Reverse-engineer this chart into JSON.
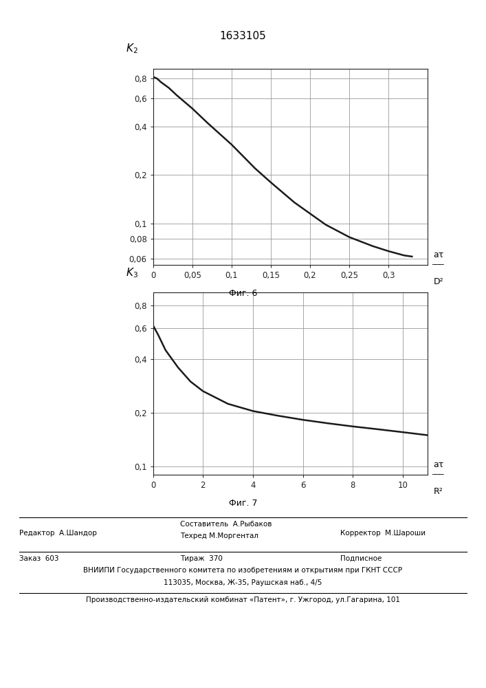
{
  "title": "1633105",
  "fig6_label": "Фиг. 6",
  "fig7_label": "Фиг. 7",
  "plot1": {
    "ylabel": "K₂",
    "xlabel_num": "aτ",
    "xlabel_den": "D²",
    "xtick_vals": [
      0,
      0.05,
      0.1,
      0.15,
      0.2,
      0.25,
      0.3
    ],
    "xtick_labels": [
      "0",
      "0,05",
      "0,1",
      "0,15",
      "0,2",
      "0,25",
      "0,3"
    ],
    "ytick_vals": [
      0.06,
      0.08,
      0.1,
      0.2,
      0.4,
      0.6,
      0.8
    ],
    "ytick_labels": [
      "0,06",
      "0,08",
      "0,1",
      "0,2",
      "0,4",
      "0,6",
      "0,8"
    ],
    "xmin": 0,
    "xmax": 0.35,
    "ymin": 0.055,
    "ymax": 0.92,
    "curve_x": [
      0,
      0.005,
      0.01,
      0.02,
      0.03,
      0.05,
      0.07,
      0.1,
      0.13,
      0.15,
      0.18,
      0.2,
      0.22,
      0.25,
      0.28,
      0.3,
      0.32,
      0.33
    ],
    "curve_y": [
      0.82,
      0.8,
      0.76,
      0.7,
      0.63,
      0.52,
      0.42,
      0.31,
      0.22,
      0.18,
      0.135,
      0.115,
      0.098,
      0.082,
      0.072,
      0.067,
      0.063,
      0.062
    ]
  },
  "plot2": {
    "ylabel": "K₃",
    "xlabel_num": "aτ",
    "xlabel_den": "R²",
    "xtick_vals": [
      0,
      2,
      4,
      6,
      8,
      10
    ],
    "xtick_labels": [
      "0",
      "2",
      "4",
      "6",
      "8",
      "10"
    ],
    "ytick_vals": [
      0.1,
      0.2,
      0.4,
      0.6,
      0.8
    ],
    "ytick_labels": [
      "0,1",
      "0,2",
      "0,4",
      "0,6",
      "0,8"
    ],
    "xmin": 0,
    "xmax": 11,
    "ymin": 0.09,
    "ymax": 0.95,
    "curve_x": [
      0,
      0.2,
      0.5,
      1.0,
      1.5,
      2.0,
      3.0,
      4.0,
      5.0,
      6.0,
      7.0,
      8.0,
      9.0,
      10.0,
      11.0
    ],
    "curve_y": [
      0.62,
      0.55,
      0.45,
      0.36,
      0.3,
      0.265,
      0.225,
      0.205,
      0.193,
      0.183,
      0.175,
      0.168,
      0.162,
      0.156,
      0.15
    ]
  },
  "footer": {
    "editor": "Редактор  А.Шандор",
    "composer_top": "Составитель  А.Рыбаков",
    "composer_bot": "Техред М.Моргентал",
    "corrector": "Корректор  М.Шароши",
    "order": "Заказ  603",
    "tirazh": "Тираж  370",
    "podpisnoe": "Подписное",
    "vniipи": "ВНИИПИ Государственного комитета по изобретениям и открытиям при ГКНТ СССР",
    "address": "113035, Москва, Ж-35, Раушская наб., 4/5",
    "factory": "Производственно-издательский комбинат «Патент», г. Ужгород, ул.Гагарина, 101"
  },
  "bg_color": "#ffffff",
  "line_color": "#1a1a1a",
  "grid_color": "#999999",
  "axes_color": "#222222"
}
